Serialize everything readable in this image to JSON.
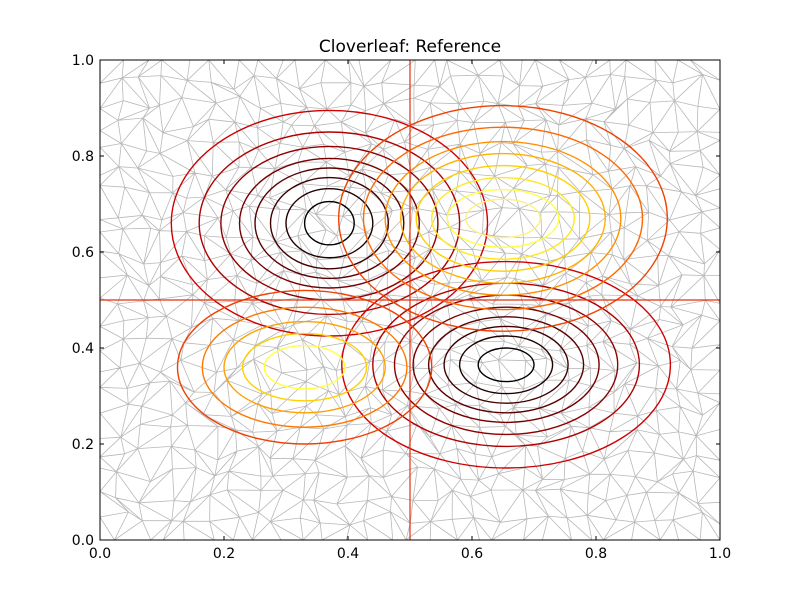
{
  "chart_data": {
    "type": "contour",
    "title": "Cloverleaf: Reference",
    "xlabel": "",
    "ylabel": "",
    "xlim": [
      0.0,
      1.0
    ],
    "ylim": [
      0.0,
      1.0
    ],
    "xticks": [
      "0.0",
      "0.2",
      "0.4",
      "0.6",
      "0.8",
      "1.0"
    ],
    "yticks": [
      "0.0",
      "0.2",
      "0.4",
      "0.6",
      "0.8",
      "1.0"
    ],
    "grid": false,
    "legend": "none",
    "background": "triangulated mesh (gray edges) over unit square",
    "mesh_color": "#a0a0a0",
    "colormap": "hot",
    "zero_contour_lines": [
      {
        "orientation": "vertical",
        "x": 0.5,
        "color": "#e03010"
      },
      {
        "orientation": "horizontal",
        "y": 0.5,
        "color": "#e03010"
      }
    ],
    "lobes": [
      {
        "name": "upper-left",
        "center": [
          0.37,
          0.66
        ],
        "sign": "negative",
        "levels": [
          {
            "rx": 0.04,
            "ry": 0.045,
            "color": "#000000"
          },
          {
            "rx": 0.07,
            "ry": 0.072,
            "color": "#200000"
          },
          {
            "rx": 0.095,
            "ry": 0.095,
            "color": "#400000"
          },
          {
            "rx": 0.12,
            "ry": 0.115,
            "color": "#5a0000"
          },
          {
            "rx": 0.145,
            "ry": 0.135,
            "color": "#760000"
          },
          {
            "rx": 0.175,
            "ry": 0.16,
            "color": "#900000"
          },
          {
            "rx": 0.21,
            "ry": 0.19,
            "color": "#b00000"
          },
          {
            "rx": 0.255,
            "ry": 0.235,
            "color": "#d00000"
          }
        ]
      },
      {
        "name": "lower-right",
        "center": [
          0.655,
          0.365
        ],
        "sign": "negative",
        "levels": [
          {
            "rx": 0.045,
            "ry": 0.035,
            "color": "#000000"
          },
          {
            "rx": 0.075,
            "ry": 0.06,
            "color": "#200000"
          },
          {
            "rx": 0.1,
            "ry": 0.08,
            "color": "#400000"
          },
          {
            "rx": 0.125,
            "ry": 0.1,
            "color": "#5a0000"
          },
          {
            "rx": 0.15,
            "ry": 0.12,
            "color": "#760000"
          },
          {
            "rx": 0.18,
            "ry": 0.145,
            "color": "#900000"
          },
          {
            "rx": 0.215,
            "ry": 0.17,
            "color": "#b00000"
          },
          {
            "rx": 0.265,
            "ry": 0.215,
            "color": "#d00000"
          }
        ]
      },
      {
        "name": "upper-right",
        "center": [
          0.65,
          0.67
        ],
        "sign": "positive",
        "levels": [
          {
            "rx": 0.06,
            "ry": 0.04,
            "color": "#fff080"
          },
          {
            "rx": 0.09,
            "ry": 0.06,
            "color": "#ffff40"
          },
          {
            "rx": 0.115,
            "ry": 0.085,
            "color": "#ffe820"
          },
          {
            "rx": 0.14,
            "ry": 0.11,
            "color": "#ffd000"
          },
          {
            "rx": 0.165,
            "ry": 0.135,
            "color": "#ffb000"
          },
          {
            "rx": 0.19,
            "ry": 0.16,
            "color": "#ff9000"
          },
          {
            "rx": 0.225,
            "ry": 0.19,
            "color": "#ff6800"
          },
          {
            "rx": 0.265,
            "ry": 0.235,
            "color": "#f04000"
          }
        ]
      },
      {
        "name": "lower-left",
        "center": [
          0.33,
          0.36
        ],
        "sign": "positive",
        "levels": [
          {
            "rx": 0.065,
            "ry": 0.045,
            "color": "#ffff40"
          },
          {
            "rx": 0.1,
            "ry": 0.07,
            "color": "#ffd000"
          },
          {
            "rx": 0.13,
            "ry": 0.095,
            "color": "#ffa000"
          },
          {
            "rx": 0.165,
            "ry": 0.125,
            "color": "#ff7800"
          },
          {
            "rx": 0.205,
            "ry": 0.16,
            "color": "#f04000"
          }
        ]
      }
    ]
  }
}
